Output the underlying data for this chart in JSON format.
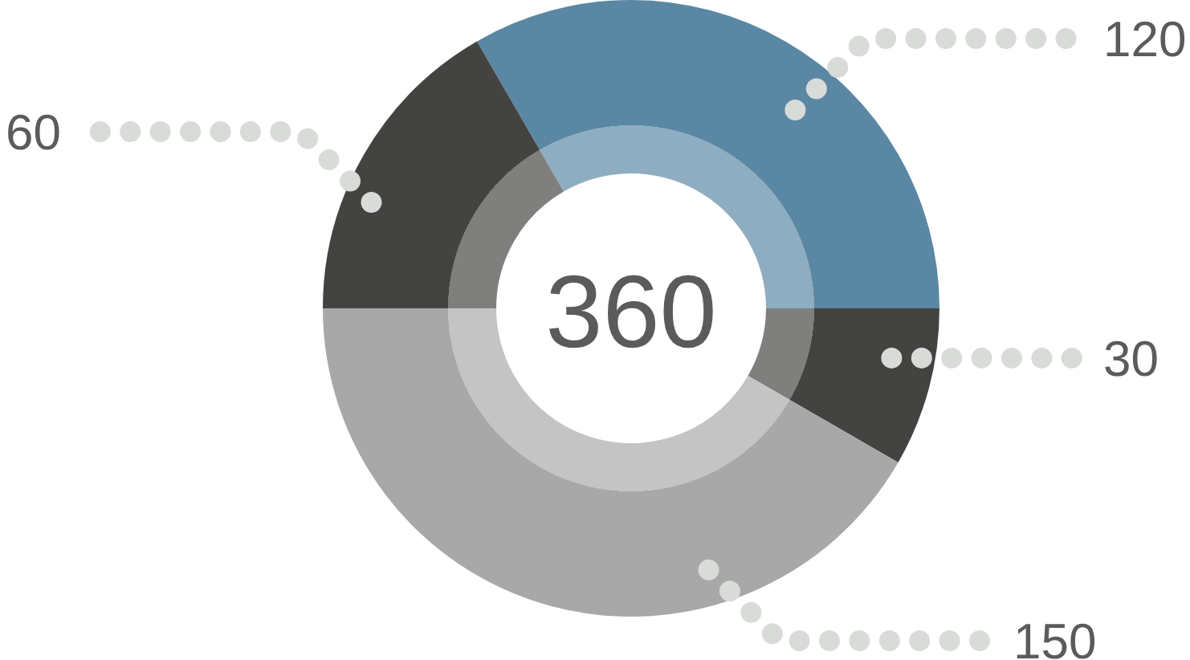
{
  "chart_data": {
    "type": "donut",
    "categories": [
      null,
      null,
      null,
      null
    ],
    "values": [
      120,
      30,
      150,
      60
    ],
    "colors": [
      "#5a87a3",
      "#434341",
      "#a8a8a8",
      "#434341"
    ],
    "data_labels": true,
    "annotations": [
      "360"
    ]
  }
}
